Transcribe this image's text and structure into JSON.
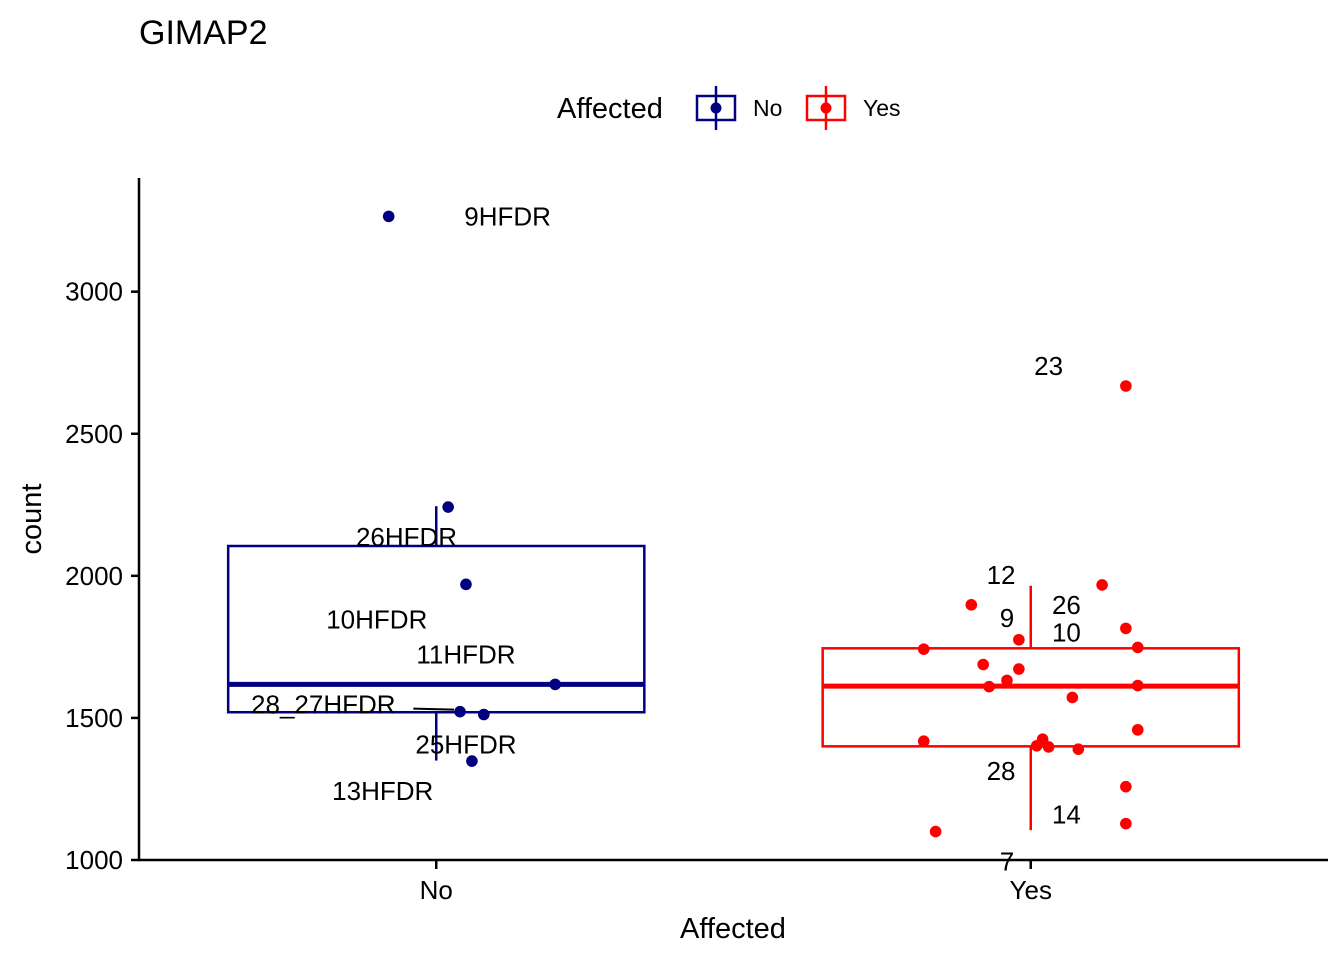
{
  "chart_data": {
    "type": "boxplot",
    "title": "GIMAP2",
    "xlabel": "Affected",
    "ylabel": "count",
    "ylim": [
      1000,
      3400
    ],
    "yticks": [
      1000,
      1500,
      2000,
      2500,
      3000
    ],
    "categories": [
      "No",
      "Yes"
    ],
    "legend": {
      "title": "Affected",
      "position": "top",
      "entries": [
        "No",
        "Yes"
      ]
    },
    "grid": false,
    "colors": {
      "No": "#000080",
      "Yes": "#ff0000"
    },
    "boxes": [
      {
        "group": "No",
        "min": 1350,
        "q1": 1520,
        "median": 1618,
        "q3": 2105,
        "max": 2245
      },
      {
        "group": "Yes",
        "min": 1105,
        "q1": 1400,
        "median": 1612,
        "q3": 1745,
        "max": 1965
      }
    ],
    "points": [
      {
        "group": "No",
        "jitter": -0.08,
        "y": 3265,
        "label": "9HFDR",
        "label_dx": 0.2,
        "label_dy": 0
      },
      {
        "group": "No",
        "jitter": 0.02,
        "y": 2242,
        "label": "26HFDR",
        "label_dx": -0.07,
        "label_dy": -0.3
      },
      {
        "group": "No",
        "jitter": 0.05,
        "y": 1970,
        "label": "10HFDR",
        "label_dx": -0.15,
        "label_dy": -0.35
      },
      {
        "group": "No",
        "jitter": 0.2,
        "y": 1618,
        "label": "11HFDR",
        "label_dx": -0.15,
        "label_dy": 0.3
      },
      {
        "group": "No",
        "jitter": 0.04,
        "y": 1522,
        "label": "28_27HFDR",
        "label_dx": -0.23,
        "label_dy": 0.07,
        "leader": true
      },
      {
        "group": "No",
        "jitter": 0.08,
        "y": 1512,
        "label": "25HFDR",
        "label_dx": -0.03,
        "label_dy": -0.3
      },
      {
        "group": "No",
        "jitter": 0.06,
        "y": 1348,
        "label": "13HFDR",
        "label_dx": -0.15,
        "label_dy": -0.3
      },
      {
        "group": "Yes",
        "jitter": 0.16,
        "y": 2668,
        "label": "23",
        "label_dx": -0.13,
        "label_dy": 0.2
      },
      {
        "group": "Yes",
        "jitter": 0.12,
        "y": 1968,
        "label": "12",
        "label_dx": -0.17,
        "label_dy": 0.1
      },
      {
        "group": "Yes",
        "jitter": -0.1,
        "y": 1898,
        "label": "26",
        "label_dx": 0.16,
        "label_dy": 0
      },
      {
        "group": "Yes",
        "jitter": -0.02,
        "y": 1775,
        "label": "9",
        "label_dx": -0.02,
        "label_dy": 0.22
      },
      {
        "group": "Yes",
        "jitter": 0.16,
        "y": 1815,
        "label": "",
        "label_dx": 0,
        "label_dy": 0
      },
      {
        "group": "Yes",
        "jitter": -0.18,
        "y": 1742,
        "label": "",
        "label_dx": 0,
        "label_dy": 0
      },
      {
        "group": "Yes",
        "jitter": 0.18,
        "y": 1748,
        "label": "10",
        "label_dx": -0.12,
        "label_dy": 0.15
      },
      {
        "group": "Yes",
        "jitter": -0.08,
        "y": 1688,
        "label": "",
        "label_dx": 0,
        "label_dy": 0
      },
      {
        "group": "Yes",
        "jitter": -0.02,
        "y": 1672,
        "label": "",
        "label_dx": 0,
        "label_dy": 0
      },
      {
        "group": "Yes",
        "jitter": -0.04,
        "y": 1632,
        "label": "",
        "label_dx": 0,
        "label_dy": 0
      },
      {
        "group": "Yes",
        "jitter": -0.07,
        "y": 1610,
        "label": "",
        "label_dx": 0,
        "label_dy": 0
      },
      {
        "group": "Yes",
        "jitter": 0.18,
        "y": 1614,
        "label": "",
        "label_dx": 0,
        "label_dy": 0
      },
      {
        "group": "Yes",
        "jitter": 0.07,
        "y": 1572,
        "label": "",
        "label_dx": 0,
        "label_dy": 0
      },
      {
        "group": "Yes",
        "jitter": 0.18,
        "y": 1458,
        "label": "",
        "label_dx": 0,
        "label_dy": 0
      },
      {
        "group": "Yes",
        "jitter": 0.02,
        "y": 1425,
        "label": "",
        "label_dx": 0,
        "label_dy": 0
      },
      {
        "group": "Yes",
        "jitter": -0.18,
        "y": 1418,
        "label": "",
        "label_dx": 0,
        "label_dy": 0
      },
      {
        "group": "Yes",
        "jitter": 0.01,
        "y": 1402,
        "label": "28",
        "label_dx": -0.06,
        "label_dy": -0.25
      },
      {
        "group": "Yes",
        "jitter": 0.03,
        "y": 1398,
        "label": "",
        "label_dx": 0,
        "label_dy": 0
      },
      {
        "group": "Yes",
        "jitter": 0.08,
        "y": 1390,
        "label": "",
        "label_dx": 0,
        "label_dy": 0
      },
      {
        "group": "Yes",
        "jitter": 0.16,
        "y": 1258,
        "label": "14",
        "label_dx": -0.1,
        "label_dy": -0.28
      },
      {
        "group": "Yes",
        "jitter": 0.16,
        "y": 1128,
        "label": "",
        "label_dx": 0,
        "label_dy": 0
      },
      {
        "group": "Yes",
        "jitter": -0.16,
        "y": 1100,
        "label": "7",
        "label_dx": 0.12,
        "label_dy": -0.3
      }
    ]
  }
}
